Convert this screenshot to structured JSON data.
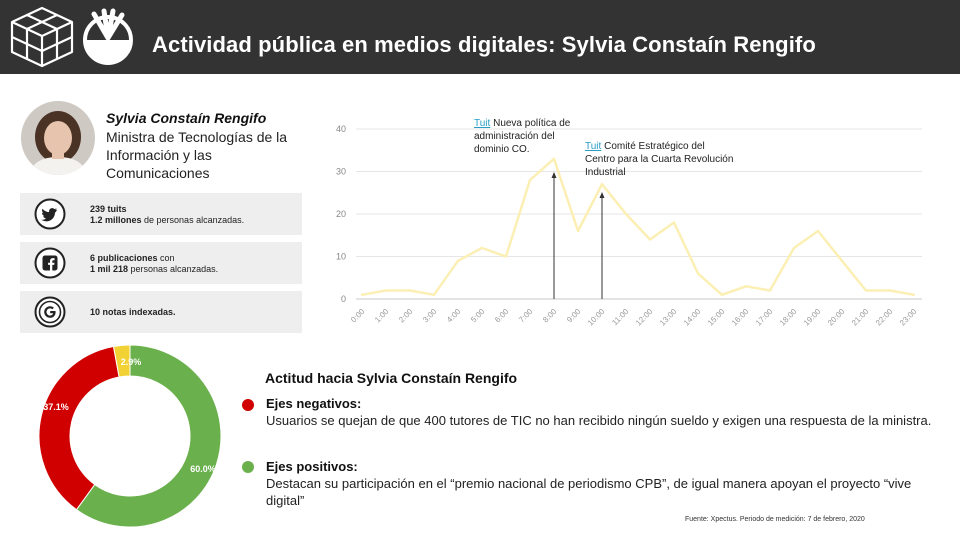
{
  "header": {
    "title": "Actividad pública en medios digitales: Sylvia Constaín Rengifo"
  },
  "profile": {
    "name": "Sylvia Constaín Rengifo",
    "role": "Ministra de Tecnologías de la Información y las Comunicaciones"
  },
  "stats": [
    {
      "icon": "twitter-icon",
      "line1_bold": "239 tuits",
      "line1_rest": "",
      "line2_bold": "1.2 millones",
      "line2_rest": " de personas alcanzadas."
    },
    {
      "icon": "facebook-icon",
      "line1_bold": "6 publicaciones",
      "line1_rest": " con",
      "line2_bold": "1 mil 218",
      "line2_rest": " personas alcanzadas."
    },
    {
      "icon": "google-icon",
      "line1_bold": "10 notas indexadas.",
      "line1_rest": "",
      "line2_bold": "",
      "line2_rest": ""
    }
  ],
  "annotations": [
    {
      "link": "Tuit",
      "text": " Nueva política de administración del dominio CO.",
      "hour": "8:00"
    },
    {
      "link": "Tuit",
      "text": " Comité Estratégico del Centro para la Cuarta Revolución Industrial",
      "hour": "10:00"
    }
  ],
  "chart_data": {
    "type": "line",
    "x": [
      "0:00",
      "1:00",
      "2:00",
      "3:00",
      "4:00",
      "5:00",
      "6:00",
      "7:00",
      "8:00",
      "9:00",
      "10:00",
      "11:00",
      "12:00",
      "13:00",
      "14:00",
      "15:00",
      "16:00",
      "17:00",
      "18:00",
      "19:00",
      "20:00",
      "21:00",
      "22:00",
      "23:00"
    ],
    "values": [
      1,
      2,
      2,
      1,
      9,
      12,
      10,
      28,
      33,
      16,
      27,
      20,
      14,
      18,
      6,
      1,
      3,
      2,
      12,
      16,
      9,
      2,
      2,
      1
    ],
    "yticks": [
      0,
      10,
      20,
      30,
      40
    ],
    "ylim": [
      0,
      40
    ],
    "line_color": "#fcefb4",
    "grid": true
  },
  "attitude": {
    "title": "Actitud hacia Sylvia Constaín Rengifo",
    "donut": [
      {
        "label": "60.0%",
        "value": 60.0,
        "color": "#6ab04c"
      },
      {
        "label": "37.1%",
        "value": 37.1,
        "color": "#d00000"
      },
      {
        "label": "2.9%",
        "value": 2.9,
        "color": "#f2d135"
      }
    ],
    "negative_label": "Ejes negativos:",
    "negative_text": "Usuarios se quejan de que 400 tutores de TIC no han recibido ningún sueldo y exigen una respuesta de la ministra.",
    "positive_label": "Ejes positivos:",
    "positive_text": "Destacan su participación en el “premio nacional de periodismo CPB”, de igual manera apoyan el proyecto “vive digital”",
    "negative_color": "#d00000",
    "positive_color": "#6ab04c"
  },
  "footer": {
    "source": "Fuente: Xpectus. Periodo de medición:  7 de febrero, 2020"
  }
}
